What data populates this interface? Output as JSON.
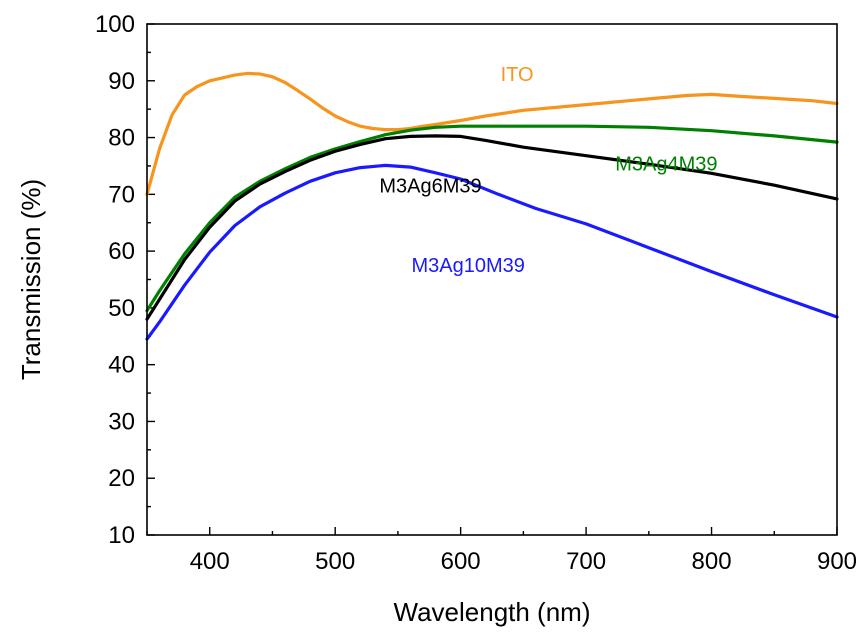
{
  "chart_data": {
    "type": "line",
    "xlabel": "Wavelength (nm)",
    "ylabel": "Transmission (%)",
    "xlim": [
      350,
      900
    ],
    "ylim": [
      10,
      100
    ],
    "xticks": [
      400,
      500,
      600,
      700,
      800,
      900
    ],
    "yticks": [
      10,
      20,
      30,
      40,
      50,
      60,
      70,
      80,
      90,
      100
    ],
    "grid": false,
    "series": [
      {
        "name": "ITO",
        "color": "#f7941d",
        "x": [
          350,
          360,
          370,
          380,
          390,
          400,
          410,
          420,
          430,
          440,
          450,
          460,
          470,
          480,
          490,
          500,
          510,
          520,
          530,
          540,
          550,
          560,
          570,
          580,
          600,
          620,
          650,
          700,
          750,
          780,
          800,
          820,
          850,
          880,
          900
        ],
        "y": [
          70,
          78,
          84,
          87.5,
          89,
          90,
          90.5,
          91,
          91.3,
          91.2,
          90.7,
          89.7,
          88.3,
          86.8,
          85.2,
          83.8,
          82.8,
          82,
          81.6,
          81.4,
          81.4,
          81.6,
          82,
          82.3,
          83,
          83.8,
          84.8,
          85.8,
          86.8,
          87.4,
          87.6,
          87.3,
          86.9,
          86.5,
          86
        ]
      },
      {
        "name": "M3Ag4M39",
        "color": "#008000",
        "x": [
          350,
          360,
          380,
          400,
          420,
          440,
          460,
          480,
          500,
          520,
          540,
          560,
          580,
          600,
          650,
          700,
          750,
          800,
          850,
          900
        ],
        "y": [
          49.5,
          53,
          59.5,
          65,
          69.5,
          72.3,
          74.5,
          76.5,
          78,
          79.3,
          80.5,
          81.3,
          81.8,
          82,
          82,
          82,
          81.8,
          81.2,
          80.3,
          79.2
        ]
      },
      {
        "name": "M3Ag6M39",
        "color": "#000000",
        "x": [
          350,
          360,
          380,
          400,
          420,
          440,
          460,
          480,
          500,
          520,
          540,
          560,
          580,
          600,
          620,
          650,
          700,
          750,
          800,
          850,
          900
        ],
        "y": [
          48,
          51.5,
          58.5,
          64.2,
          68.8,
          71.8,
          74,
          76,
          77.6,
          78.8,
          79.8,
          80.2,
          80.3,
          80.2,
          79.5,
          78.3,
          76.8,
          75.3,
          73.7,
          71.6,
          69.2
        ]
      },
      {
        "name": "M3Ag10M39",
        "color": "#1a1aff",
        "x": [
          350,
          360,
          380,
          400,
          420,
          440,
          460,
          480,
          500,
          520,
          540,
          560,
          580,
          600,
          630,
          660,
          700,
          750,
          800,
          850,
          900
        ],
        "y": [
          44.5,
          47.5,
          54,
          59.8,
          64.5,
          67.8,
          70.2,
          72.3,
          73.8,
          74.7,
          75.1,
          74.8,
          73.8,
          72.7,
          70,
          67.5,
          64.8,
          60.6,
          56.4,
          52.3,
          48.4
        ]
      }
    ]
  }
}
